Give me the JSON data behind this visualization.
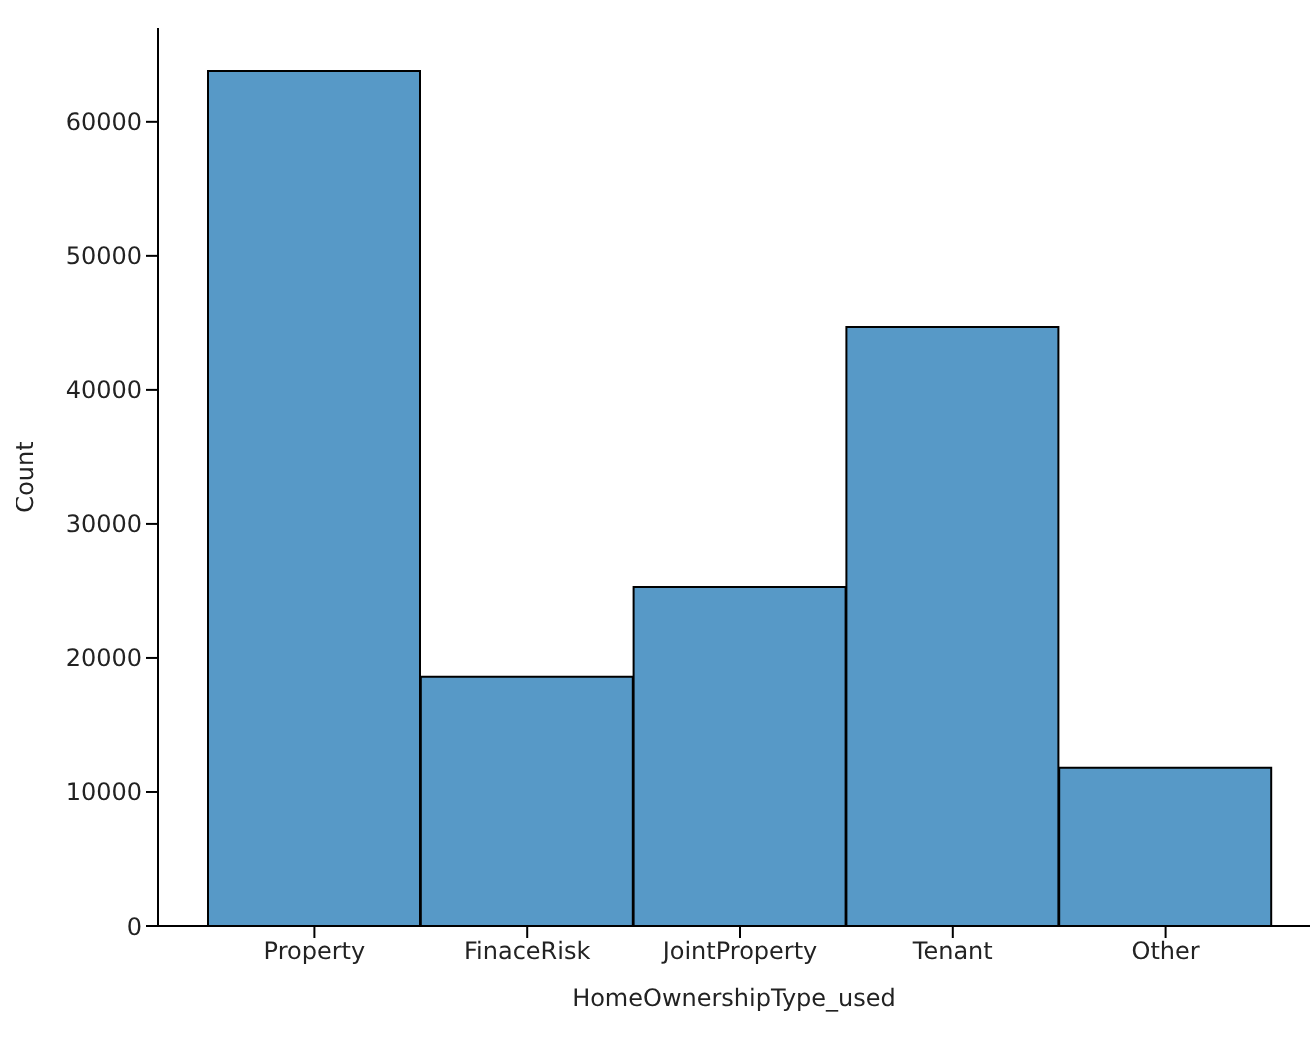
{
  "chart_data": {
    "type": "bar",
    "xlabel": "HomeOwnershipType_used",
    "ylabel": "Count",
    "categories": [
      "Property",
      "FinaceRisk",
      "JointProperty",
      "Tenant",
      "Other"
    ],
    "values": [
      63800,
      18600,
      25300,
      44700,
      11800
    ],
    "color": "#5799c7",
    "ylim": [
      0,
      67000
    ],
    "yticks": [
      0,
      10000,
      20000,
      30000,
      40000,
      50000,
      60000
    ],
    "grid": false,
    "legend": false
  }
}
